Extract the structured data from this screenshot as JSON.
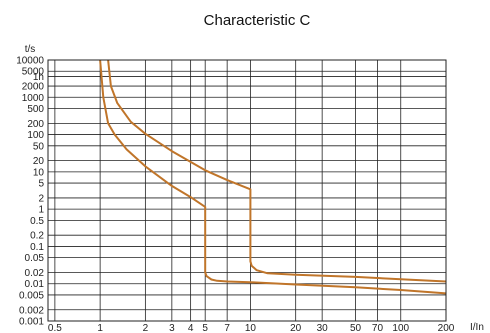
{
  "chart_data": {
    "type": "line",
    "title": "Characteristic C",
    "xlabel": "I/In",
    "ylabel": "t/s",
    "x_scale": "log",
    "y_scale": "log",
    "xlim": [
      0.45,
      200
    ],
    "ylim": [
      0.001,
      10000
    ],
    "grid": true,
    "line_color": "#c0752a",
    "x_ticks": [
      {
        "value": 0.5,
        "label": "0.5"
      },
      {
        "value": 1,
        "label": "1"
      },
      {
        "value": 2,
        "label": "2"
      },
      {
        "value": 3,
        "label": "3"
      },
      {
        "value": 4,
        "label": "4"
      },
      {
        "value": 5,
        "label": "5"
      },
      {
        "value": 7,
        "label": "7"
      },
      {
        "value": 10,
        "label": "10"
      },
      {
        "value": 20,
        "label": "20"
      },
      {
        "value": 30,
        "label": "30"
      },
      {
        "value": 50,
        "label": "50"
      },
      {
        "value": 70,
        "label": "70"
      },
      {
        "value": 100,
        "label": "100"
      },
      {
        "value": 200,
        "label": "200"
      }
    ],
    "y_ticks": [
      {
        "value": 10000,
        "label": "10000"
      },
      {
        "value": 5000,
        "label": "5000"
      },
      {
        "value": 3600,
        "label": "1h"
      },
      {
        "value": 2000,
        "label": "2000"
      },
      {
        "value": 1000,
        "label": "1000"
      },
      {
        "value": 500,
        "label": "500"
      },
      {
        "value": 200,
        "label": "200"
      },
      {
        "value": 100,
        "label": "100"
      },
      {
        "value": 50,
        "label": "50"
      },
      {
        "value": 20,
        "label": "20"
      },
      {
        "value": 10,
        "label": "10"
      },
      {
        "value": 5,
        "label": "5"
      },
      {
        "value": 2,
        "label": "2"
      },
      {
        "value": 1,
        "label": "1"
      },
      {
        "value": 0.5,
        "label": "0.5"
      },
      {
        "value": 0.2,
        "label": "0.2"
      },
      {
        "value": 0.1,
        "label": "0.1"
      },
      {
        "value": 0.05,
        "label": "0.05"
      },
      {
        "value": 0.02,
        "label": "0.02"
      },
      {
        "value": 0.01,
        "label": "0.01"
      },
      {
        "value": 0.005,
        "label": "0.005"
      },
      {
        "value": 0.002,
        "label": "0.002"
      },
      {
        "value": 0.001,
        "label": "0.001"
      }
    ],
    "series": [
      {
        "x": [
          1.0,
          1.05,
          1.13,
          1.25,
          1.5,
          2.0,
          3.0,
          4.0,
          5.0,
          5.0,
          5.1,
          5.5,
          6.0,
          7.0,
          10.0,
          20.0,
          50.0,
          100.0,
          200.0
        ],
        "y": [
          10000,
          1000,
          200,
          100,
          40,
          14,
          4.2,
          2.1,
          1.15,
          0.02,
          0.016,
          0.013,
          0.012,
          0.0115,
          0.011,
          0.0095,
          0.008,
          0.0068,
          0.0055
        ]
      },
      {
        "x": [
          1.13,
          1.18,
          1.3,
          1.6,
          2.0,
          3.0,
          5.0,
          7.0,
          10.0,
          10.0,
          10.2,
          11.0,
          13.0,
          20.0,
          50.0,
          100.0,
          200.0
        ],
        "y": [
          10000,
          2000,
          700,
          220,
          105,
          36,
          11,
          6.0,
          3.4,
          0.04,
          0.03,
          0.023,
          0.019,
          0.0175,
          0.0152,
          0.0132,
          0.0115
        ]
      }
    ]
  }
}
